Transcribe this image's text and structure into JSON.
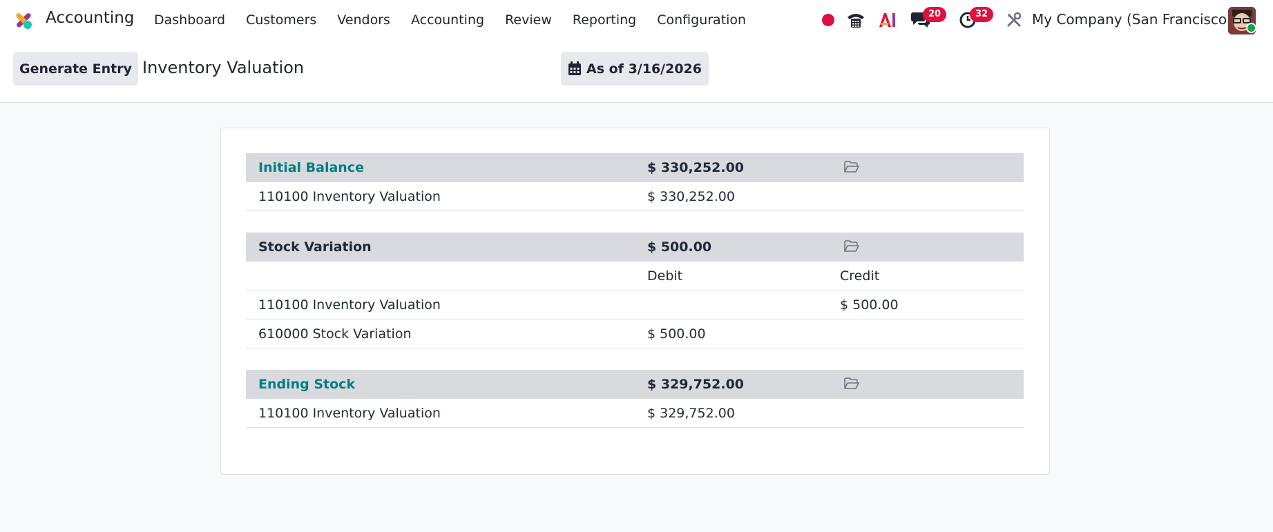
{
  "navbar": {
    "app_name": "Accounting",
    "menu": [
      "Dashboard",
      "Customers",
      "Vendors",
      "Accounting",
      "Review",
      "Reporting",
      "Configuration"
    ],
    "messages_count": "20",
    "activities_count": "32",
    "ai_label": "AI",
    "company": "My Company (San Francisco)"
  },
  "control": {
    "generate_label": "Generate Entry",
    "title": "Inventory Valuation",
    "date_label": "As of 3/16/2026"
  },
  "report": {
    "initial": {
      "label": "Initial Balance",
      "amount": "$ 330,252.00",
      "lines": [
        {
          "account": "110100 Inventory Valuation",
          "amount": "$ 330,252.00"
        }
      ]
    },
    "variation": {
      "label": "Stock Variation",
      "amount": "$ 500.00",
      "debit_header": "Debit",
      "credit_header": "Credit",
      "lines": [
        {
          "account": "110100 Inventory Valuation",
          "debit": "",
          "credit": "$ 500.00"
        },
        {
          "account": "610000 Stock Variation",
          "debit": "$ 500.00",
          "credit": ""
        }
      ]
    },
    "ending": {
      "label": "Ending Stock",
      "amount": "$ 329,752.00",
      "lines": [
        {
          "account": "110100 Inventory Valuation",
          "amount": "$ 329,752.00"
        }
      ]
    }
  },
  "colors": {
    "accent": "#017e84",
    "badge": "#e0103e",
    "section_bg": "#d8dadd"
  },
  "icons": [
    "app-logo-icon",
    "record-icon",
    "phone-icon",
    "ai-icon",
    "chat-icon",
    "activity-clock-icon",
    "tools-icon",
    "calendar-icon",
    "folder-open-icon"
  ]
}
